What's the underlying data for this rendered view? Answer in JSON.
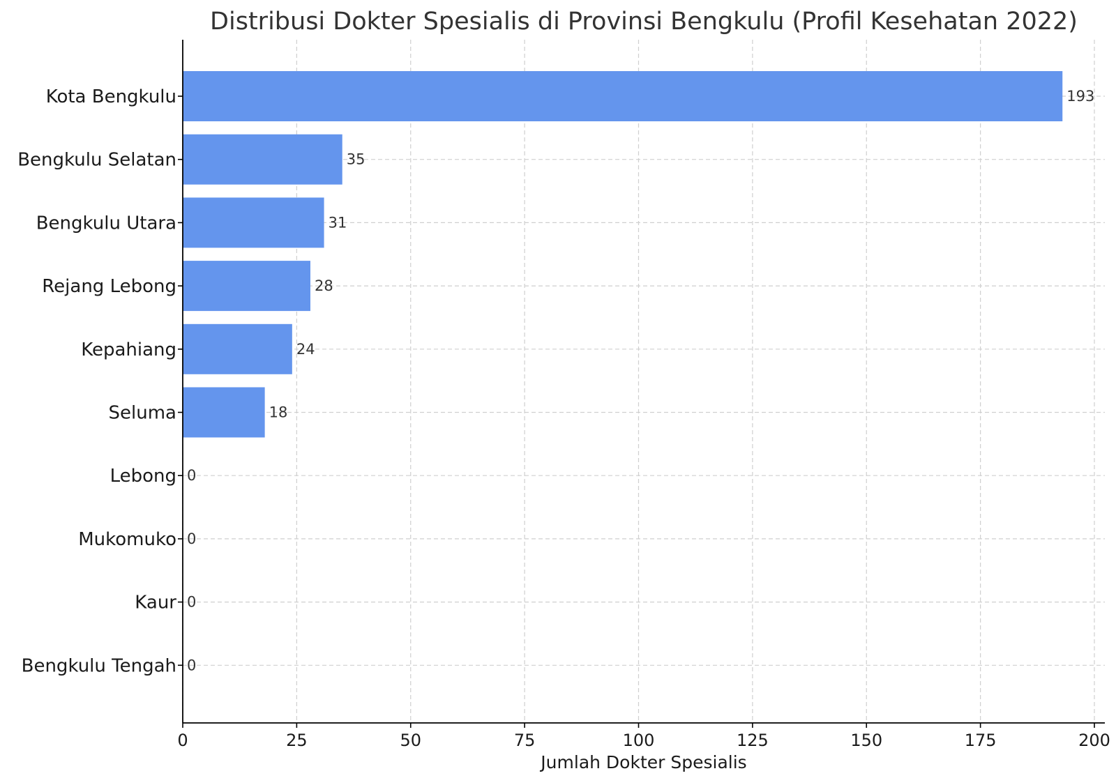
{
  "chart_data": {
    "type": "bar",
    "orientation": "horizontal",
    "title": "Distribusi Dokter Spesialis di Provinsi Bengkulu (Profil Kesehatan 2022)",
    "xlabel": "Jumlah Dokter Spesialis",
    "ylabel": "",
    "categories": [
      "Kota Bengkulu",
      "Bengkulu Selatan",
      "Bengkulu Utara",
      "Rejang Lebong",
      "Kepahiang",
      "Seluma",
      "Lebong",
      "Mukomuko",
      "Kaur",
      "Bengkulu Tengah"
    ],
    "values": [
      193,
      35,
      31,
      28,
      24,
      18,
      0,
      0,
      0,
      0
    ],
    "data_labels": [
      "193",
      "35",
      "31",
      "28",
      "24",
      "18",
      "0",
      "0",
      "0",
      "0"
    ],
    "xlim": [
      0,
      200
    ],
    "xticks": [
      0,
      25,
      50,
      75,
      100,
      125,
      150,
      175,
      200
    ],
    "xtick_labels": [
      "0",
      "25",
      "50",
      "75",
      "100",
      "125",
      "150",
      "175",
      "200"
    ],
    "grid": true,
    "bar_color": "#6495ED"
  }
}
